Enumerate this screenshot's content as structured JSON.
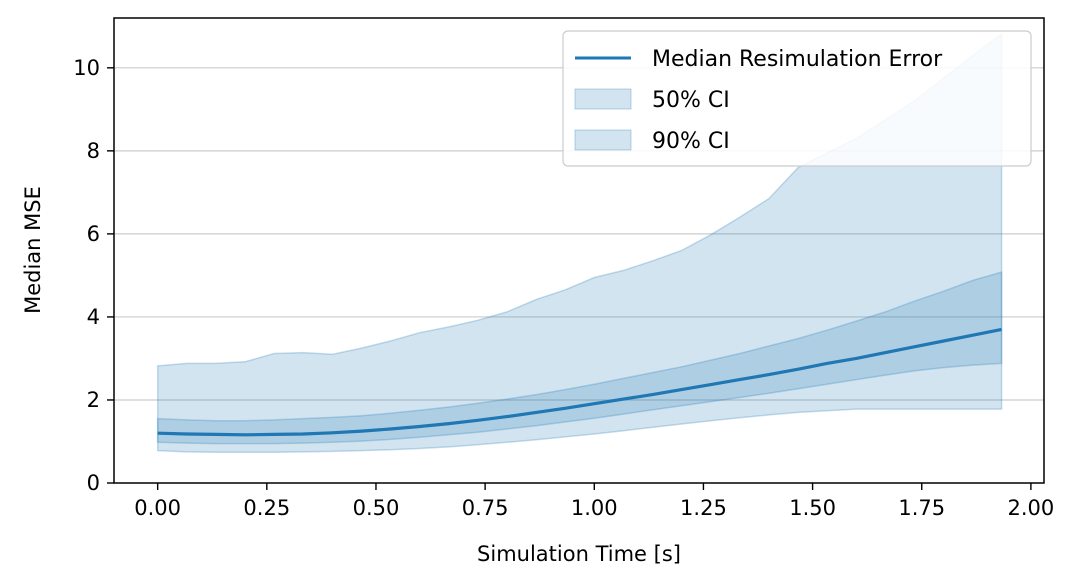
{
  "chart_data": {
    "type": "line",
    "xlabel": "Simulation Time [s]",
    "ylabel": "Median MSE",
    "xlim": [
      -0.1,
      2.03
    ],
    "ylim": [
      0,
      11.2
    ],
    "xticks": [
      0.0,
      0.25,
      0.5,
      0.75,
      1.0,
      1.25,
      1.5,
      1.75,
      2.0
    ],
    "xtick_labels": [
      "0.00",
      "0.25",
      "0.50",
      "0.75",
      "1.00",
      "1.25",
      "1.50",
      "1.75",
      "2.00"
    ],
    "yticks": [
      0,
      2,
      4,
      6,
      8,
      10
    ],
    "ytick_labels": [
      "0",
      "2",
      "4",
      "6",
      "8",
      "10"
    ],
    "grid": "horizontal",
    "legend_position": "top-right",
    "colors": {
      "line": "#1f77b4",
      "band": "#1f77b4",
      "grid": "#cccccc"
    },
    "x": [
      0.0,
      0.067,
      0.133,
      0.2,
      0.267,
      0.333,
      0.4,
      0.467,
      0.533,
      0.6,
      0.667,
      0.733,
      0.8,
      0.867,
      0.933,
      1.0,
      1.067,
      1.133,
      1.2,
      1.267,
      1.333,
      1.4,
      1.467,
      1.533,
      1.6,
      1.667,
      1.733,
      1.8,
      1.867,
      1.933
    ],
    "series": [
      {
        "name": "Median Resimulation Error",
        "kind": "line",
        "values": [
          1.2,
          1.18,
          1.17,
          1.16,
          1.17,
          1.18,
          1.21,
          1.25,
          1.3,
          1.36,
          1.43,
          1.51,
          1.6,
          1.7,
          1.8,
          1.91,
          2.02,
          2.13,
          2.25,
          2.37,
          2.49,
          2.61,
          2.74,
          2.88,
          3.0,
          3.14,
          3.28,
          3.42,
          3.56,
          3.7
        ]
      },
      {
        "name": "50% CI",
        "kind": "band",
        "lower": [
          0.98,
          0.96,
          0.95,
          0.95,
          0.95,
          0.96,
          0.98,
          1.01,
          1.05,
          1.1,
          1.16,
          1.22,
          1.3,
          1.38,
          1.47,
          1.56,
          1.66,
          1.76,
          1.86,
          1.96,
          2.06,
          2.16,
          2.27,
          2.38,
          2.49,
          2.6,
          2.7,
          2.78,
          2.84,
          2.88
        ],
        "upper": [
          1.55,
          1.52,
          1.5,
          1.5,
          1.52,
          1.55,
          1.58,
          1.62,
          1.68,
          1.75,
          1.83,
          1.92,
          2.02,
          2.13,
          2.25,
          2.38,
          2.52,
          2.66,
          2.8,
          2.96,
          3.12,
          3.3,
          3.48,
          3.68,
          3.9,
          4.12,
          4.38,
          4.62,
          4.88,
          5.08
        ]
      },
      {
        "name": "90% CI",
        "kind": "band",
        "lower": [
          0.78,
          0.75,
          0.74,
          0.74,
          0.74,
          0.75,
          0.76,
          0.78,
          0.8,
          0.83,
          0.87,
          0.92,
          0.98,
          1.04,
          1.11,
          1.18,
          1.26,
          1.34,
          1.42,
          1.5,
          1.57,
          1.64,
          1.7,
          1.74,
          1.78,
          1.78,
          1.78,
          1.78,
          1.78,
          1.78
        ],
        "upper": [
          2.82,
          2.88,
          2.88,
          2.92,
          3.12,
          3.14,
          3.1,
          3.25,
          3.42,
          3.62,
          3.76,
          3.92,
          4.12,
          4.42,
          4.65,
          4.95,
          5.12,
          5.35,
          5.6,
          5.98,
          6.4,
          6.85,
          7.6,
          7.95,
          8.3,
          8.75,
          9.2,
          9.75,
          10.3,
          10.82
        ]
      }
    ]
  }
}
